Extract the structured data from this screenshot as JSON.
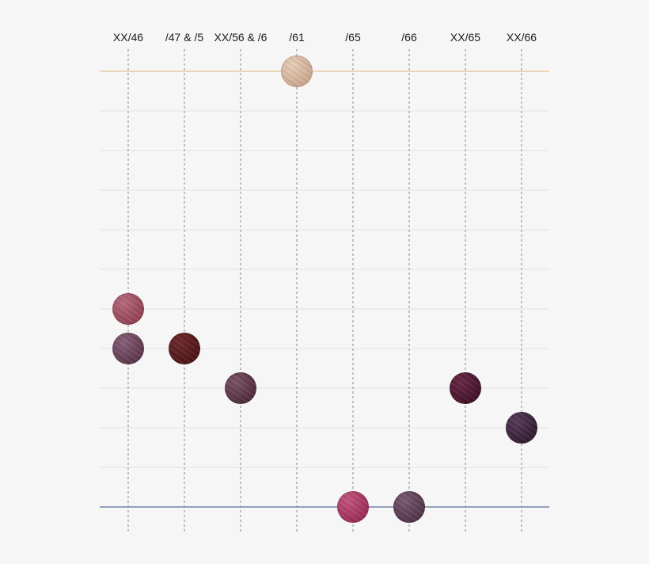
{
  "chart_data": {
    "type": "scatter",
    "categories": [
      "XX/46",
      "/47 & /5",
      "XX/56 & /6",
      "/61",
      "/65",
      "/66",
      "XX/65",
      "XX/66"
    ],
    "row_count": 12,
    "top_line_color": "#e0b57a",
    "bottom_line_color": "#2f4a78",
    "points": [
      {
        "category": "/61",
        "row": 0,
        "color": "#c9a48c",
        "highlight": "#e6cdb8"
      },
      {
        "category": "XX/46",
        "row": 6,
        "color": "#8e3f52",
        "highlight": "#b66a7c"
      },
      {
        "category": "XX/46",
        "row": 7,
        "color": "#5a3448",
        "highlight": "#87607a"
      },
      {
        "category": "/47 & /5",
        "row": 7,
        "color": "#4a1418",
        "highlight": "#6e2a2a"
      },
      {
        "category": "XX/56 & /6",
        "row": 8,
        "color": "#4c2a3a",
        "highlight": "#7a5466"
      },
      {
        "category": "XX/65",
        "row": 8,
        "color": "#3e1026",
        "highlight": "#6a2a48"
      },
      {
        "category": "XX/66",
        "row": 9,
        "color": "#2e1a2e",
        "highlight": "#5a3c5a"
      },
      {
        "category": "/65",
        "row": 11,
        "color": "#972a52",
        "highlight": "#c25680"
      },
      {
        "category": "/66",
        "row": 11,
        "color": "#4e3246",
        "highlight": "#7a5a72"
      }
    ]
  }
}
